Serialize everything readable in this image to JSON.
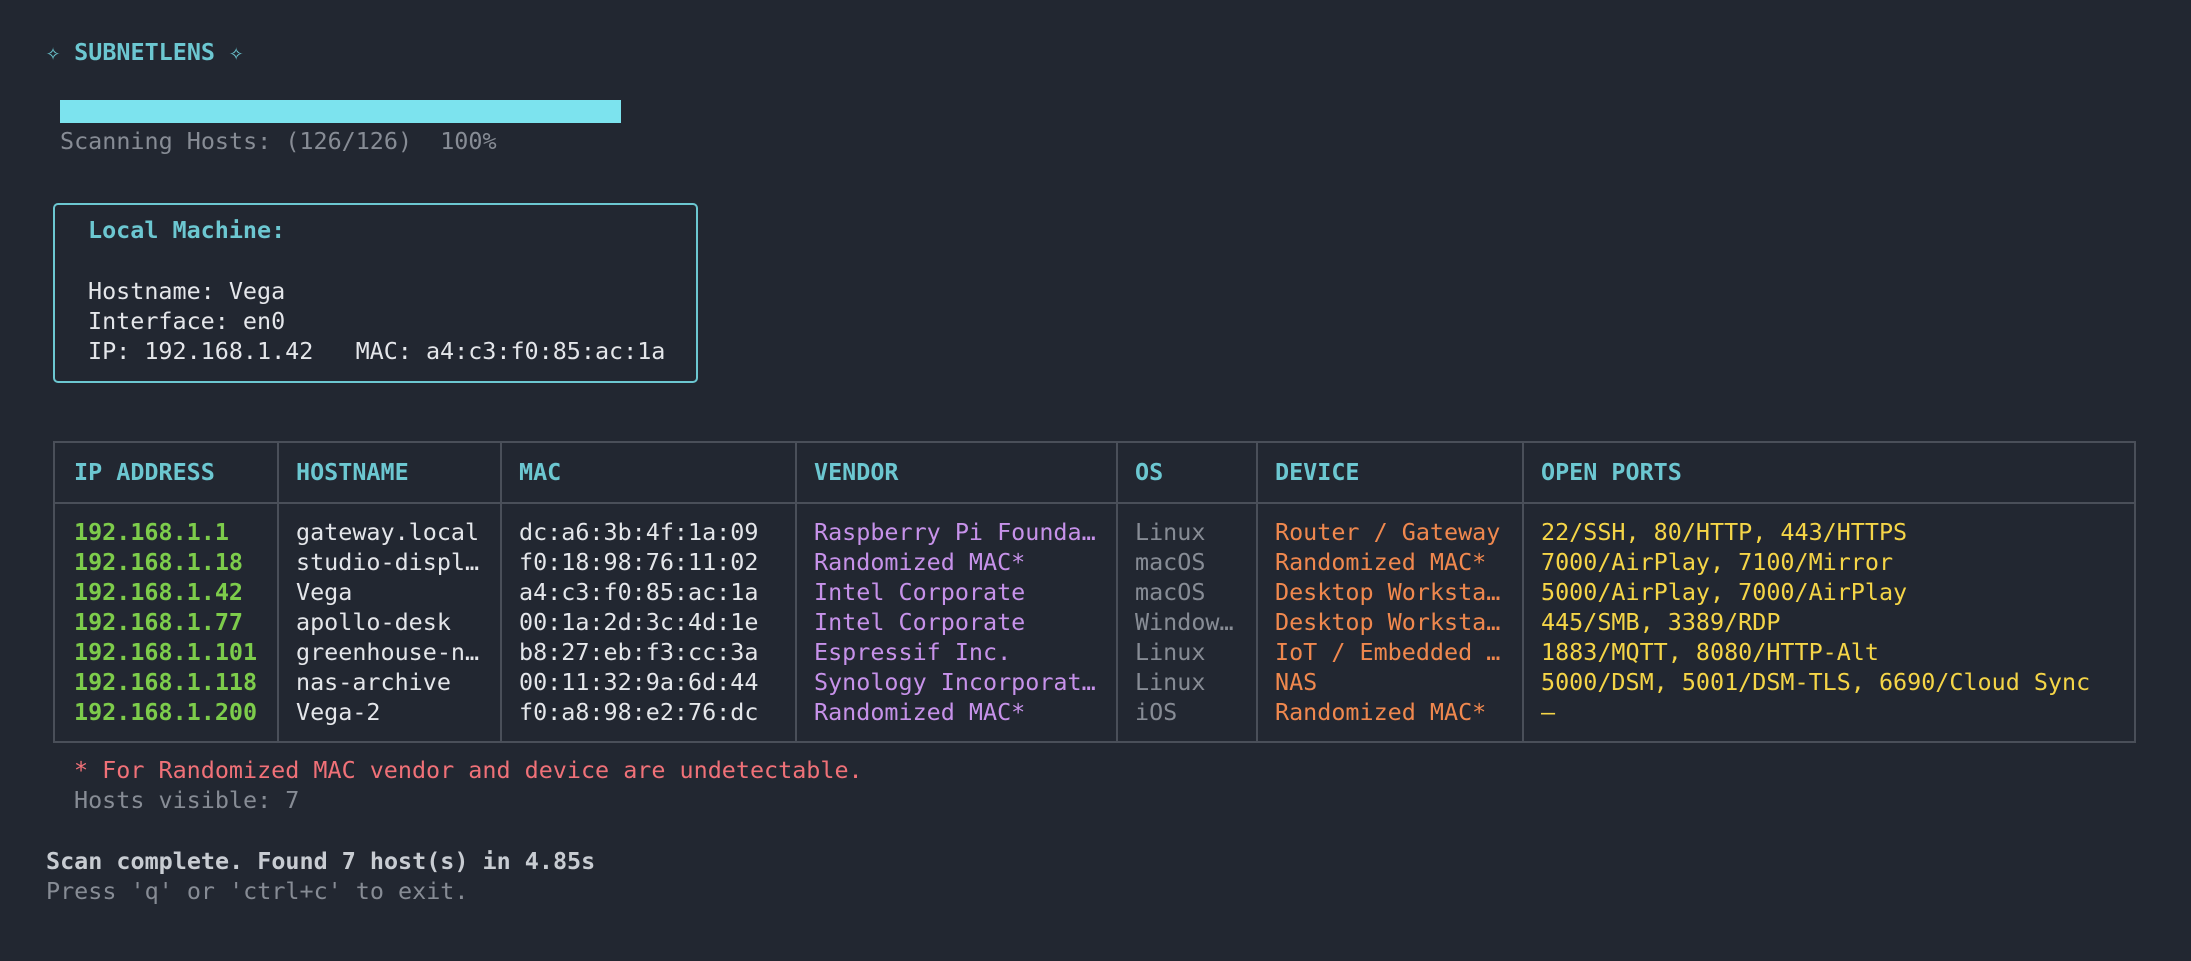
{
  "header": {
    "title": "✧ SUBNETLENS ✧"
  },
  "progress": {
    "label": "Scanning Hosts: (126/126)  100%"
  },
  "local_machine": {
    "title": "Local Machine:",
    "lines": [
      "Hostname: Vega",
      "Interface: en0",
      "IP: 192.168.1.42   MAC: a4:c3:f0:85:ac:1a"
    ]
  },
  "table": {
    "columns": [
      "IP ADDRESS",
      "HOSTNAME",
      "MAC",
      "VENDOR",
      "OS",
      "DEVICE",
      "OPEN PORTS"
    ],
    "rows": [
      [
        "192.168.1.1",
        "gateway.local",
        "dc:a6:3b:4f:1a:09",
        "Raspberry Pi Founda…",
        "Linux",
        "Router / Gateway",
        "22/SSH, 80/HTTP, 443/HTTPS"
      ],
      [
        "192.168.1.18",
        "studio-displ…",
        "f0:18:98:76:11:02",
        "Randomized MAC*",
        "macOS",
        "Randomized MAC*",
        "7000/AirPlay, 7100/Mirror"
      ],
      [
        "192.168.1.42",
        "Vega",
        "a4:c3:f0:85:ac:1a",
        "Intel Corporate",
        "macOS",
        "Desktop Worksta…",
        "5000/AirPlay, 7000/AirPlay"
      ],
      [
        "192.168.1.77",
        "apollo-desk",
        "00:1a:2d:3c:4d:1e",
        "Intel Corporate",
        "Window…",
        "Desktop Worksta…",
        "445/SMB, 3389/RDP"
      ],
      [
        "192.168.1.101",
        "greenhouse-n…",
        "b8:27:eb:f3:cc:3a",
        "Espressif Inc.",
        "Linux",
        "IoT / Embedded …",
        "1883/MQTT, 8080/HTTP-Alt"
      ],
      [
        "192.168.1.118",
        "nas-archive",
        "00:11:32:9a:6d:44",
        "Synology Incorporat…",
        "Linux",
        "NAS",
        "5000/DSM, 5001/DSM-TLS, 6690/Cloud Sync"
      ],
      [
        "192.168.1.200",
        "Vega-2",
        "f0:a8:98:e2:76:dc",
        "Randomized MAC*",
        "iOS",
        "Randomized MAC*",
        "—"
      ]
    ]
  },
  "footnote": "* For Randomized MAC vendor and device are undetectable.",
  "hosts_visible": "Hosts visible: 7",
  "status": {
    "summary": "Scan complete. Found 7 host(s) in 4.85s",
    "hint": "Press 'q' or 'ctrl+c' to exit."
  }
}
